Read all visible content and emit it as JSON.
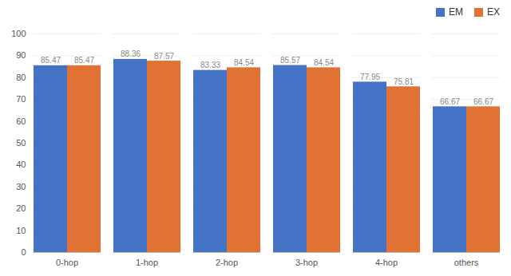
{
  "chart_data": {
    "type": "bar",
    "categories": [
      "0-hop",
      "1-hop",
      "2-hop",
      "3-hop",
      "4-hop",
      "others"
    ],
    "series": [
      {
        "name": "EM",
        "color": "#4472C4",
        "values": [
          85.47,
          88.36,
          83.33,
          85.57,
          77.95,
          66.67
        ]
      },
      {
        "name": "EX",
        "color": "#E07333",
        "values": [
          85.47,
          87.57,
          84.54,
          84.54,
          75.81,
          66.67
        ]
      }
    ],
    "ylim": [
      0,
      100
    ],
    "yticks": [
      0,
      10,
      20,
      30,
      40,
      50,
      60,
      70,
      80,
      90,
      100
    ],
    "grid": true,
    "data_labels": true,
    "legend": "upper right"
  }
}
